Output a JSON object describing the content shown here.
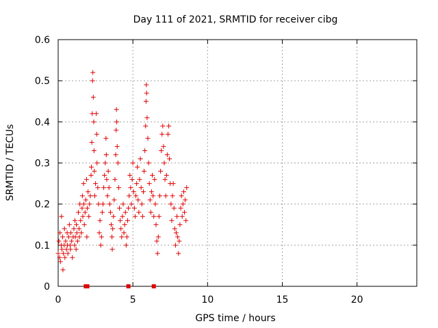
{
  "chart_data": {
    "type": "scatter",
    "title": "Day 111 of 2021, SRMTID for receiver cibg",
    "xlabel": "GPS time / hours",
    "ylabel": "SRMTID / TECUs",
    "xlim": [
      0,
      24
    ],
    "ylim": [
      0,
      0.6
    ],
    "xticks": [
      0,
      5,
      10,
      15,
      20
    ],
    "xtick_labels": [
      "0",
      "5",
      "10",
      "15",
      "20"
    ],
    "yticks": [
      0,
      0.1,
      0.2,
      0.3,
      0.4,
      0.5,
      0.6
    ],
    "ytick_labels": [
      "0",
      "0.1",
      "0.2",
      "0.3",
      "0.4",
      "0.5",
      "0.6"
    ],
    "grid": true,
    "marker": "plus",
    "color": "#e00000",
    "series": [
      {
        "name": "SRMTID",
        "points": [
          [
            0.0,
            0.08
          ],
          [
            0.05,
            0.11
          ],
          [
            0.1,
            0.07
          ],
          [
            0.12,
            0.13
          ],
          [
            0.15,
            0.06
          ],
          [
            0.2,
            0.1
          ],
          [
            0.22,
            0.17
          ],
          [
            0.25,
            0.09
          ],
          [
            0.3,
            0.12
          ],
          [
            0.32,
            0.04
          ],
          [
            0.35,
            0.08
          ],
          [
            0.4,
            0.1
          ],
          [
            0.42,
            0.14
          ],
          [
            0.45,
            0.07
          ],
          [
            0.5,
            0.11
          ],
          [
            0.55,
            0.09
          ],
          [
            0.6,
            0.13
          ],
          [
            0.62,
            0.1
          ],
          [
            0.65,
            0.08
          ],
          [
            0.7,
            0.12
          ],
          [
            0.75,
            0.15
          ],
          [
            0.8,
            0.1
          ],
          [
            0.82,
            0.09
          ],
          [
            0.85,
            0.13
          ],
          [
            0.9,
            0.11
          ],
          [
            0.95,
            0.07
          ],
          [
            1.0,
            0.12
          ],
          [
            1.05,
            0.14
          ],
          [
            1.1,
            0.1
          ],
          [
            1.12,
            0.16
          ],
          [
            1.15,
            0.12
          ],
          [
            1.2,
            0.09
          ],
          [
            1.22,
            0.15
          ],
          [
            1.25,
            0.13
          ],
          [
            1.3,
            0.11
          ],
          [
            1.35,
            0.18
          ],
          [
            1.4,
            0.14
          ],
          [
            1.42,
            0.12
          ],
          [
            1.45,
            0.2
          ],
          [
            1.5,
            0.16
          ],
          [
            1.55,
            0.13
          ],
          [
            1.6,
            0.19
          ],
          [
            1.62,
            0.22
          ],
          [
            1.65,
            0.17
          ],
          [
            1.7,
            0.25
          ],
          [
            1.72,
            0.2
          ],
          [
            1.75,
            0.15
          ],
          [
            1.8,
            0.18
          ],
          [
            1.85,
            0.21
          ],
          [
            1.9,
            0.26
          ],
          [
            1.92,
            0.12
          ],
          [
            1.95,
            0.19
          ],
          [
            2.0,
            0.23
          ],
          [
            2.05,
            0.17
          ],
          [
            2.1,
            0.2
          ],
          [
            2.15,
            0.22
          ],
          [
            2.2,
            0.27
          ],
          [
            2.22,
            0.29
          ],
          [
            2.25,
            0.35
          ],
          [
            2.28,
            0.42
          ],
          [
            2.3,
            0.5
          ],
          [
            2.32,
            0.52
          ],
          [
            2.35,
            0.46
          ],
          [
            2.38,
            0.4
          ],
          [
            2.4,
            0.33
          ],
          [
            2.42,
            0.28
          ],
          [
            2.45,
            0.22
          ],
          [
            2.5,
            0.25
          ],
          [
            2.55,
            0.42
          ],
          [
            2.58,
            0.37
          ],
          [
            2.6,
            0.3
          ],
          [
            2.65,
            0.24
          ],
          [
            2.7,
            0.2
          ],
          [
            2.75,
            0.13
          ],
          [
            2.8,
            0.16
          ],
          [
            2.85,
            0.1
          ],
          [
            2.9,
            0.12
          ],
          [
            2.95,
            0.18
          ],
          [
            3.0,
            0.2
          ],
          [
            3.05,
            0.24
          ],
          [
            3.1,
            0.27
          ],
          [
            3.15,
            0.3
          ],
          [
            3.2,
            0.36
          ],
          [
            3.22,
            0.32
          ],
          [
            3.25,
            0.26
          ],
          [
            3.3,
            0.22
          ],
          [
            3.35,
            0.28
          ],
          [
            3.4,
            0.24
          ],
          [
            3.45,
            0.2
          ],
          [
            3.5,
            0.18
          ],
          [
            3.55,
            0.15
          ],
          [
            3.6,
            0.12
          ],
          [
            3.62,
            0.09
          ],
          [
            3.65,
            0.14
          ],
          [
            3.7,
            0.17
          ],
          [
            3.75,
            0.21
          ],
          [
            3.8,
            0.26
          ],
          [
            3.85,
            0.32
          ],
          [
            3.88,
            0.38
          ],
          [
            3.9,
            0.43
          ],
          [
            3.92,
            0.4
          ],
          [
            3.95,
            0.34
          ],
          [
            4.0,
            0.3
          ],
          [
            4.05,
            0.24
          ],
          [
            4.1,
            0.19
          ],
          [
            4.15,
            0.16
          ],
          [
            4.2,
            0.14
          ],
          [
            4.25,
            0.12
          ],
          [
            4.3,
            0.17
          ],
          [
            4.35,
            0.2
          ],
          [
            4.4,
            0.13
          ],
          [
            4.45,
            0.15
          ],
          [
            4.5,
            0.18
          ],
          [
            4.55,
            0.1
          ],
          [
            4.6,
            0.12
          ],
          [
            4.65,
            0.16
          ],
          [
            4.7,
            0.19
          ],
          [
            4.75,
            0.22
          ],
          [
            4.8,
            0.27
          ],
          [
            4.85,
            0.24
          ],
          [
            4.9,
            0.2
          ],
          [
            4.95,
            0.26
          ],
          [
            5.0,
            0.3
          ],
          [
            5.05,
            0.23
          ],
          [
            5.1,
            0.19
          ],
          [
            5.15,
            0.17
          ],
          [
            5.2,
            0.22
          ],
          [
            5.25,
            0.25
          ],
          [
            5.3,
            0.29
          ],
          [
            5.35,
            0.21
          ],
          [
            5.4,
            0.18
          ],
          [
            5.45,
            0.26
          ],
          [
            5.5,
            0.31
          ],
          [
            5.55,
            0.24
          ],
          [
            5.6,
            0.2
          ],
          [
            5.65,
            0.17
          ],
          [
            5.7,
            0.23
          ],
          [
            5.75,
            0.28
          ],
          [
            5.8,
            0.33
          ],
          [
            5.85,
            0.39
          ],
          [
            5.88,
            0.45
          ],
          [
            5.9,
            0.49
          ],
          [
            5.92,
            0.47
          ],
          [
            5.95,
            0.41
          ],
          [
            6.0,
            0.36
          ],
          [
            6.05,
            0.3
          ],
          [
            6.1,
            0.25
          ],
          [
            6.15,
            0.21
          ],
          [
            6.2,
            0.18
          ],
          [
            6.25,
            0.23
          ],
          [
            6.3,
            0.27
          ],
          [
            6.35,
            0.22
          ],
          [
            6.4,
            0.17
          ],
          [
            6.45,
            0.26
          ],
          [
            6.5,
            0.2
          ],
          [
            6.55,
            0.15
          ],
          [
            6.6,
            0.11
          ],
          [
            6.65,
            0.08
          ],
          [
            6.7,
            0.12
          ],
          [
            6.75,
            0.17
          ],
          [
            6.8,
            0.22
          ],
          [
            6.85,
            0.28
          ],
          [
            6.9,
            0.33
          ],
          [
            6.95,
            0.37
          ],
          [
            7.0,
            0.39
          ],
          [
            7.05,
            0.34
          ],
          [
            7.1,
            0.3
          ],
          [
            7.15,
            0.26
          ],
          [
            7.2,
            0.22
          ],
          [
            7.25,
            0.27
          ],
          [
            7.3,
            0.32
          ],
          [
            7.35,
            0.37
          ],
          [
            7.4,
            0.39
          ],
          [
            7.45,
            0.31
          ],
          [
            7.5,
            0.25
          ],
          [
            7.55,
            0.2
          ],
          [
            7.6,
            0.16
          ],
          [
            7.65,
            0.22
          ],
          [
            7.7,
            0.25
          ],
          [
            7.75,
            0.19
          ],
          [
            7.8,
            0.14
          ],
          [
            7.85,
            0.1
          ],
          [
            7.9,
            0.13
          ],
          [
            7.95,
            0.17
          ],
          [
            8.0,
            0.12
          ],
          [
            8.05,
            0.08
          ],
          [
            8.1,
            0.11
          ],
          [
            8.15,
            0.15
          ],
          [
            8.2,
            0.19
          ],
          [
            8.25,
            0.22
          ],
          [
            8.3,
            0.17
          ],
          [
            8.35,
            0.2
          ],
          [
            8.4,
            0.23
          ],
          [
            8.45,
            0.18
          ],
          [
            8.5,
            0.21
          ],
          [
            8.55,
            0.16
          ],
          [
            8.6,
            0.24
          ]
        ]
      }
    ],
    "baseline_markers_x": [
      1.85,
      1.95,
      4.7,
      6.4
    ]
  }
}
